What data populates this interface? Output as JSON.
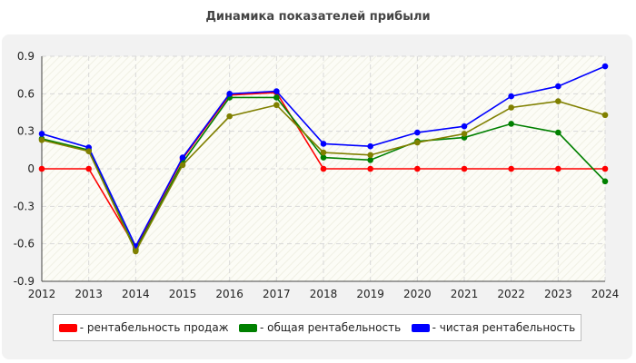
{
  "title": "Динамика показателей прибыли",
  "chart_data": {
    "type": "line",
    "x": [
      "2012",
      "2013",
      "2014",
      "2015",
      "2016",
      "2017",
      "2018",
      "2019",
      "2020",
      "2021",
      "2022",
      "2023",
      "2024"
    ],
    "ylim": [
      -0.9,
      0.9
    ],
    "yticks": [
      0.9,
      0.6,
      0.3,
      0,
      -0.3,
      -0.6,
      -0.9
    ],
    "ytick_labels": [
      "0.9",
      "0.6",
      "0.3",
      "0",
      "-0.3",
      "-0.6",
      "-0.9"
    ],
    "grid": true,
    "legend_position": "bottom",
    "series": [
      {
        "name": "- рентабельность продаж",
        "color": "#ff0000",
        "values": [
          0,
          0,
          -0.63,
          0.08,
          0.59,
          0.61,
          0,
          0,
          0,
          0,
          0,
          0,
          0
        ]
      },
      {
        "name": "- общая рентабельность",
        "color": "#008000",
        "values": [
          0.24,
          0.15,
          -0.65,
          0.05,
          0.57,
          0.57,
          0.09,
          0.07,
          0.22,
          0.25,
          0.36,
          0.29,
          -0.1
        ]
      },
      {
        "name": "- чистая рентабельность",
        "color": "#0000ff",
        "values": [
          0.28,
          0.17,
          -0.62,
          0.09,
          0.6,
          0.62,
          0.2,
          0.18,
          0.29,
          0.34,
          0.58,
          0.66,
          0.82
        ]
      },
      {
        "name": "",
        "color": "#808000",
        "values": [
          0.23,
          0.14,
          -0.66,
          0.03,
          0.42,
          0.51,
          0.13,
          0.11,
          0.21,
          0.28,
          0.49,
          0.54,
          0.43
        ]
      }
    ]
  }
}
